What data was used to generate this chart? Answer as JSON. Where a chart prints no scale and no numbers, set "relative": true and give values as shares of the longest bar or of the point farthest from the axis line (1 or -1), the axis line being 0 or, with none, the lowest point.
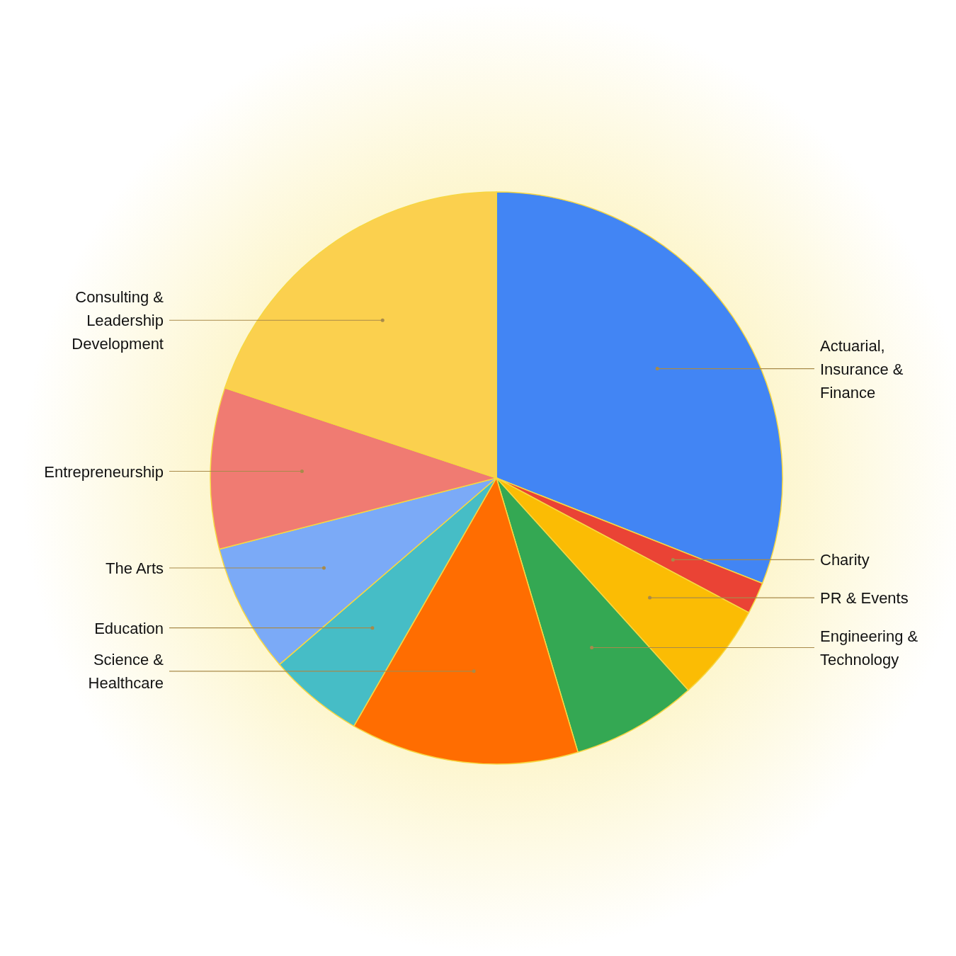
{
  "chart_data": {
    "type": "pie",
    "relative": true,
    "categories": [
      "Actuarial, Insurance & Finance",
      "Charity",
      "PR & Events",
      "Engineering & Technology",
      "Science & Healthcare",
      "Education",
      "The Arts",
      "Entrepreneurship",
      "Consulting & Leadership Development"
    ],
    "values": [
      31,
      1.8,
      5.5,
      7.1,
      12.9,
      5.4,
      7.3,
      9.1,
      19.9
    ],
    "colors": [
      "#4285f4",
      "#ea4335",
      "#fbbc04",
      "#34a853",
      "#ff6d01",
      "#46bdc6",
      "#7baaf7",
      "#f07b72",
      "#fbd04e"
    ]
  }
}
